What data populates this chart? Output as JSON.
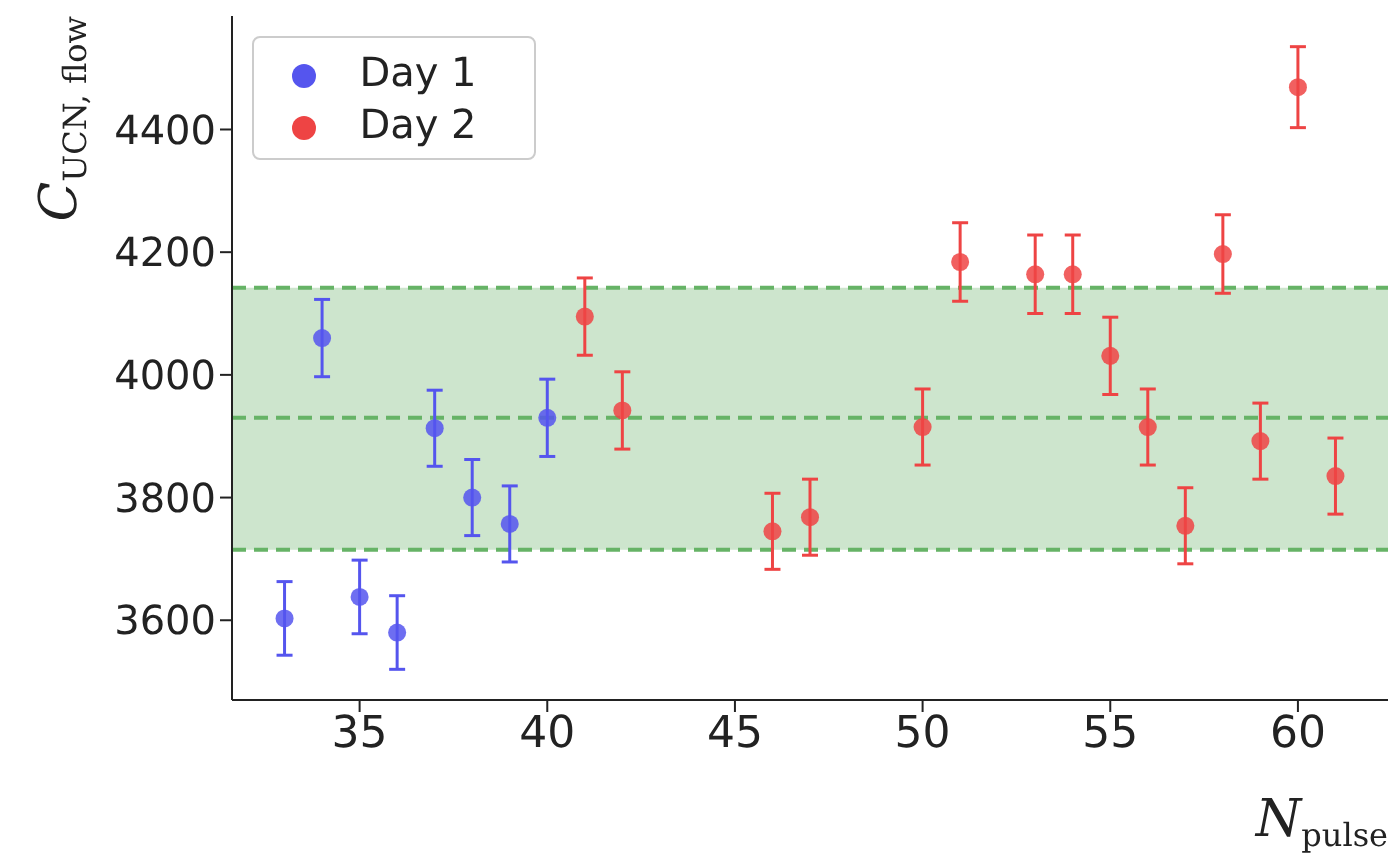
{
  "chart_data": {
    "type": "scatter",
    "xlabel": "N$_{pulse}$",
    "ylabel": "C$_{UCN, flow}$",
    "xlim": [
      31.6,
      62.4
    ],
    "xticks": [
      35,
      40,
      45,
      50,
      55,
      60
    ],
    "ylim": [
      3470,
      4585
    ],
    "yticks": [
      3600,
      3800,
      4000,
      4200,
      4400
    ],
    "grid": false,
    "legend": "top left",
    "marker": "circle",
    "series": [
      {
        "name": "Day 1",
        "color": "#5555ee",
        "x": [
          33,
          34,
          35,
          36,
          37,
          38,
          39,
          40
        ],
        "values": [
          3603,
          4060,
          3638,
          3580,
          3913,
          3800,
          3757,
          3930
        ],
        "errors": [
          60,
          63,
          60,
          60,
          62,
          62,
          62,
          63
        ]
      },
      {
        "name": "Day 2",
        "color": "#ee4444",
        "x": [
          41,
          42,
          46,
          47,
          50,
          51,
          53,
          54,
          55,
          56,
          57,
          58,
          59,
          60,
          61
        ],
        "values": [
          4095,
          3942,
          3745,
          3768,
          3915,
          4184,
          4164,
          4164,
          4031,
          3915,
          3754,
          4197,
          3892,
          4469,
          3835
        ],
        "errors": [
          63,
          63,
          62,
          62,
          62,
          64,
          64,
          64,
          63,
          62,
          62,
          64,
          62,
          66,
          62
        ]
      }
    ],
    "bands": [
      {
        "axis": "y",
        "from": 3715,
        "to": 4142,
        "color": "#cde5cd"
      }
    ],
    "ref_lines": [
      {
        "axis": "y",
        "value": 3930,
        "color": "#66b366",
        "line_style": "dashed"
      },
      {
        "axis": "y",
        "value": 3715,
        "color": "#66b366",
        "line_style": "dashed"
      },
      {
        "axis": "y",
        "value": 4142,
        "color": "#66b366",
        "line_style": "dashed"
      }
    ]
  }
}
